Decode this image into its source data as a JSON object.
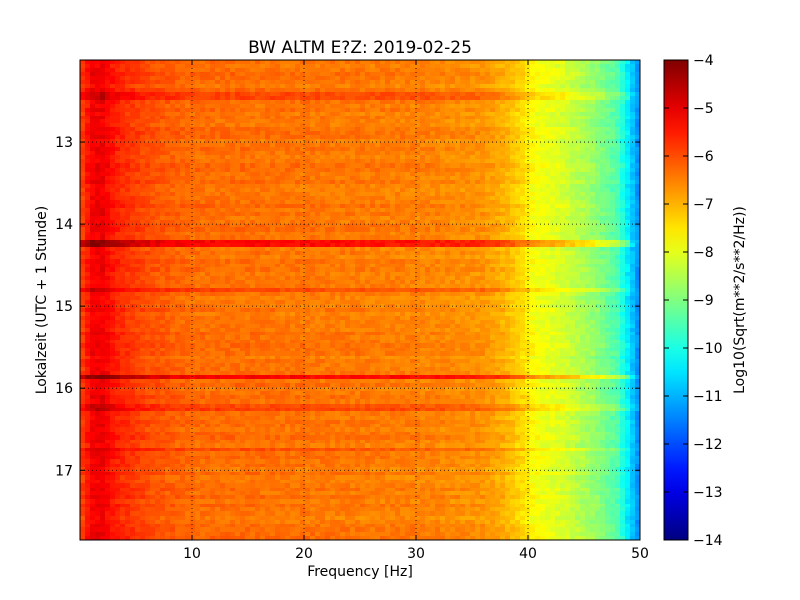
{
  "chart_data": {
    "type": "heatmap",
    "title": "BW ALTM E?Z: 2019-02-25",
    "xlabel": "Frequency [Hz]",
    "ylabel": "Lokalzeit (UTC + 1 Stunde)",
    "xlim": [
      0,
      50
    ],
    "ylim": [
      12.0,
      17.85
    ],
    "y_inverted": true,
    "grid": true,
    "x_ticks": [
      10,
      20,
      30,
      40,
      50
    ],
    "y_ticks": [
      13,
      14,
      15,
      16,
      17
    ],
    "colorbar": {
      "label": "Log10(Sqrt(m**2/s**2/Hz))",
      "range": [
        -14,
        -4
      ],
      "ticks": [
        -4,
        -5,
        -6,
        -7,
        -8,
        -9,
        -10,
        -11,
        -12,
        -13,
        -14
      ],
      "colormap": "jet"
    },
    "band_profile": [
      {
        "freq": 0,
        "value": -6.0
      },
      {
        "freq": 1,
        "value": -5.2
      },
      {
        "freq": 2,
        "value": -5.1
      },
      {
        "freq": 3,
        "value": -5.5
      },
      {
        "freq": 4,
        "value": -5.7
      },
      {
        "freq": 6,
        "value": -6.0
      },
      {
        "freq": 10,
        "value": -6.3
      },
      {
        "freq": 20,
        "value": -6.4
      },
      {
        "freq": 30,
        "value": -6.5
      },
      {
        "freq": 36,
        "value": -6.7
      },
      {
        "freq": 38,
        "value": -7.0
      },
      {
        "freq": 39.5,
        "value": -7.4
      },
      {
        "freq": 40.5,
        "value": -7.8
      },
      {
        "freq": 43,
        "value": -8.1
      },
      {
        "freq": 46,
        "value": -8.8
      },
      {
        "freq": 48,
        "value": -9.5
      },
      {
        "freq": 49.5,
        "value": -11.0
      },
      {
        "freq": 50,
        "value": -11.5
      }
    ],
    "high_energy_times": [
      {
        "time": 14.25,
        "offset": 1.0
      },
      {
        "time": 15.88,
        "offset": 1.2
      },
      {
        "time": 16.25,
        "offset": 0.5
      },
      {
        "time": 12.45,
        "offset": 0.4
      },
      {
        "time": 14.8,
        "offset": 0.35
      },
      {
        "time": 16.75,
        "offset": 0.35
      }
    ]
  }
}
